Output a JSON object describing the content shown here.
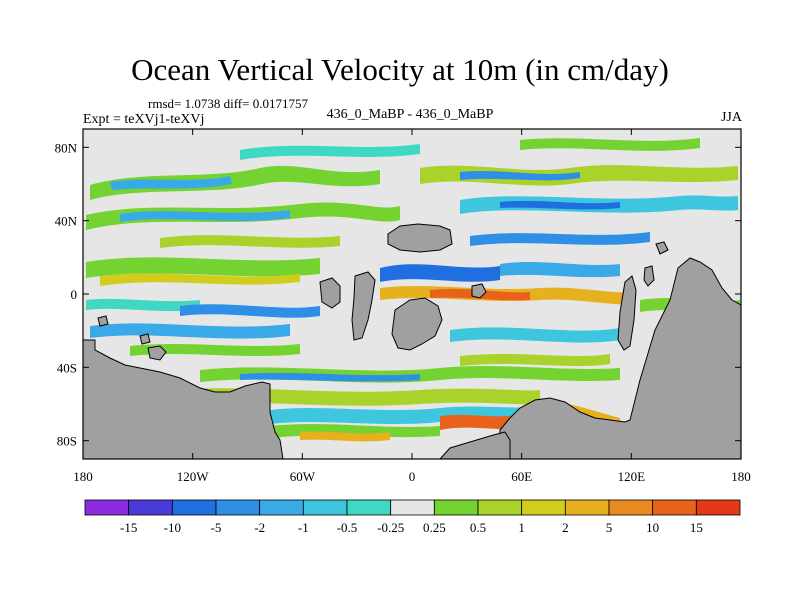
{
  "chart_data": {
    "type": "heatmap",
    "title": "Ocean Vertical Velocity at 10m (in cm/day)",
    "stats": "rmsd= 1.0738 diff= 0.0171757",
    "subtitle_left": "Expt = teXVj1-teXVj",
    "subtitle_center": "436_0_MaBP - 436_0_MaBP",
    "subtitle_right": "JJA",
    "x_ticks": [
      {
        "value": -180,
        "label": "180"
      },
      {
        "value": -120,
        "label": "120W"
      },
      {
        "value": -60,
        "label": "60W"
      },
      {
        "value": 0,
        "label": "0"
      },
      {
        "value": 60,
        "label": "60E"
      },
      {
        "value": 120,
        "label": "120E"
      },
      {
        "value": 180,
        "label": "180"
      }
    ],
    "y_ticks": [
      {
        "value": 80,
        "label": "80N"
      },
      {
        "value": 40,
        "label": "40N"
      },
      {
        "value": 0,
        "label": "0"
      },
      {
        "value": -40,
        "label": "40S"
      },
      {
        "value": -80,
        "label": "80S"
      }
    ],
    "xlim": [
      -180,
      180
    ],
    "ylim": [
      -90,
      90
    ],
    "colorbar": {
      "levels": [
        "-15",
        "-10",
        "-5",
        "-2",
        "-1",
        "-0.5",
        "-0.25",
        "0.25",
        "0.5",
        "1",
        "2",
        "5",
        "10",
        "15"
      ],
      "colors": [
        "#8c2be0",
        "#4a3bd8",
        "#1f6fe0",
        "#2f8fe6",
        "#39a9e8",
        "#3fc6df",
        "#40d8c2",
        "#e6e6e6",
        "#74d330",
        "#a9d22a",
        "#d2cc1c",
        "#e6b01e",
        "#e88a1e",
        "#e8621c",
        "#e23a18"
      ]
    },
    "land_color": "#a0a0a0"
  }
}
